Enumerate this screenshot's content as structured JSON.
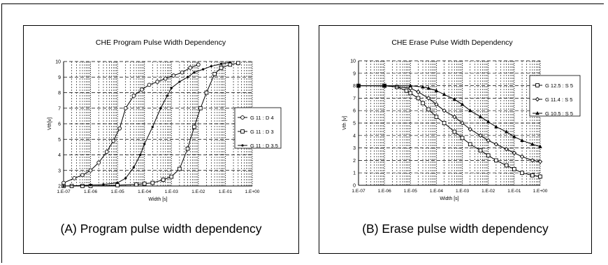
{
  "colors": {
    "line": "#000000",
    "grid": "#000000",
    "background": "#ffffff"
  },
  "chart_data": [
    {
      "type": "line",
      "title": "CHE Program Pulse Width Dependency",
      "caption": "(A) Program pulse width dependency",
      "xlabel": "Width [s]",
      "ylabel": "Vth[v]",
      "xscale": "log",
      "xlim": [
        1e-07,
        1
      ],
      "ylim": [
        2,
        10
      ],
      "x_tick_labels": [
        "1.E-07",
        "1.E-06",
        "1.E-05",
        "1.E-04",
        "1.E-03",
        "1.E-02",
        "1.E-01",
        "1.E+00"
      ],
      "y_tick_labels": [
        "2",
        "3",
        "4",
        "5",
        "6",
        "7",
        "8",
        "9",
        "10"
      ],
      "grid": true,
      "legend_position": "right",
      "series": [
        {
          "name": "G 11 : D 4",
          "marker": "circle",
          "x": [
            1e-07,
            2.5e-07,
            5e-07,
            1e-06,
            2e-06,
            4e-06,
            7e-06,
            1.2e-05,
            2e-05,
            4e-05,
            8e-05,
            0.00015,
            0.0003,
            0.0006,
            0.0012,
            0.0025,
            0.005,
            0.01
          ],
          "y": [
            2.2,
            2.5,
            2.7,
            3.0,
            3.5,
            4.2,
            4.9,
            5.7,
            7.0,
            7.8,
            8.2,
            8.5,
            8.7,
            8.9,
            9.1,
            9.3,
            9.6,
            9.8
          ]
        },
        {
          "name": "G 11 : D 3",
          "marker": "square",
          "x": [
            1e-07,
            2e-07,
            5e-07,
            1e-06,
            1e-05,
            5e-05,
            0.0001,
            0.0002,
            0.0005,
            0.001,
            0.002,
            0.004,
            0.007,
            0.012,
            0.02,
            0.04,
            0.07,
            0.15,
            0.3
          ],
          "y": [
            2.0,
            2.0,
            2.0,
            2.0,
            2.05,
            2.1,
            2.15,
            2.2,
            2.4,
            2.6,
            3.1,
            4.4,
            5.8,
            7.0,
            8.0,
            9.2,
            9.6,
            9.8,
            9.9
          ]
        },
        {
          "name": "G 11 : D 3.5",
          "marker": "dot",
          "x": [
            1e-07,
            1e-06,
            3e-06,
            1e-05,
            2e-05,
            4e-05,
            7e-05,
            0.0001,
            0.0002,
            0.0004,
            0.0007,
            0.001,
            0.002,
            0.004,
            0.007,
            0.015,
            0.03,
            0.07,
            0.15
          ],
          "y": [
            2.0,
            2.05,
            2.1,
            2.2,
            2.5,
            3.2,
            4.0,
            4.7,
            5.8,
            7.0,
            7.8,
            8.3,
            8.7,
            9.0,
            9.3,
            9.5,
            9.7,
            9.85,
            9.95
          ]
        }
      ]
    },
    {
      "type": "line",
      "title": "CHE Erase Pulse Width Dependency",
      "caption": "(B) Erase pulse width dependency",
      "xlabel": "Width [s]",
      "ylabel": "Vth [v]",
      "xscale": "log",
      "xlim": [
        1e-07,
        1
      ],
      "ylim": [
        0,
        10
      ],
      "x_tick_labels": [
        "1.E-07",
        "1.E-06",
        "1.E-05",
        "1.E-04",
        "1.E-03",
        "1.E-02",
        "1.E-01",
        "1.E+00"
      ],
      "y_tick_labels": [
        "0",
        "1",
        "2",
        "3",
        "4",
        "5",
        "6",
        "7",
        "8",
        "9",
        "10"
      ],
      "grid": true,
      "legend_position": "right",
      "series": [
        {
          "name": "G 12.5 : S 5",
          "marker": "square",
          "x": [
            1e-07,
            1e-06,
            3e-06,
            7e-06,
            1e-05,
            2e-05,
            3e-05,
            5e-05,
            0.0001,
            0.0002,
            0.0005,
            0.001,
            0.002,
            0.005,
            0.01,
            0.02,
            0.05,
            0.1,
            0.2,
            0.5,
            1
          ],
          "y": [
            8.0,
            8.0,
            7.9,
            7.6,
            7.4,
            7.0,
            6.6,
            6.1,
            5.5,
            5.0,
            4.3,
            3.8,
            3.3,
            2.8,
            2.4,
            2.0,
            1.6,
            1.3,
            1.0,
            0.8,
            0.7
          ]
        },
        {
          "name": "G 11.4 : S 5",
          "marker": "diamond",
          "x": [
            1e-07,
            1e-06,
            1e-05,
            2e-05,
            5e-05,
            0.0001,
            0.0002,
            0.0005,
            0.001,
            0.002,
            0.005,
            0.01,
            0.02,
            0.05,
            0.1,
            0.2,
            0.5,
            1
          ],
          "y": [
            8.0,
            8.0,
            7.8,
            7.5,
            7.0,
            6.5,
            6.0,
            5.5,
            5.0,
            4.5,
            4.0,
            3.6,
            3.3,
            2.9,
            2.6,
            2.3,
            2.0,
            1.9
          ]
        },
        {
          "name": "G 10.5 : S 5",
          "marker": "triangle",
          "x": [
            1e-07,
            1e-06,
            1e-05,
            3e-05,
            5e-05,
            0.0001,
            0.0002,
            0.0005,
            0.001,
            0.002,
            0.005,
            0.01,
            0.02,
            0.05,
            0.1,
            0.2,
            0.5,
            1
          ],
          "y": [
            8.0,
            8.0,
            8.0,
            7.9,
            7.8,
            7.6,
            7.3,
            6.9,
            6.5,
            6.0,
            5.5,
            5.1,
            4.7,
            4.3,
            3.9,
            3.6,
            3.3,
            3.1
          ]
        }
      ]
    }
  ]
}
